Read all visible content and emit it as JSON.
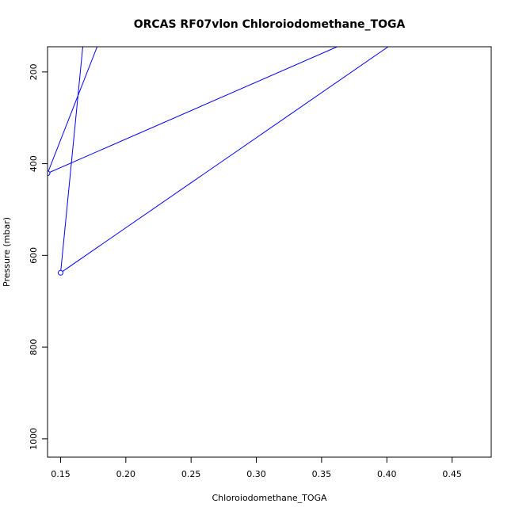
{
  "chart_data": {
    "type": "line",
    "title": "ORCAS RF07vlon Chloroiodomethane_TOGA",
    "xlabel": "Chloroiodomethane_TOGA",
    "ylabel": "Pressure (mbar)",
    "xlim": [
      0.14,
      0.48
    ],
    "ylim": [
      1040,
      145
    ],
    "y_reversed": true,
    "x_ticks": [
      0.15,
      0.2,
      0.25,
      0.3,
      0.35,
      0.4,
      0.45
    ],
    "x_tick_labels": [
      "0.15",
      "0.20",
      "0.25",
      "0.30",
      "0.35",
      "0.40",
      "0.45"
    ],
    "y_ticks": [
      200,
      400,
      600,
      800,
      1000
    ],
    "y_tick_labels": [
      "200",
      "400",
      "600",
      "800",
      "1000"
    ],
    "grid": false,
    "legend": "none",
    "series": [
      {
        "color": "#0000ff",
        "points": [
          {
            "x": 0.167,
            "y": 145
          },
          {
            "x": 0.15,
            "y": 638
          },
          {
            "x": 0.401,
            "y": 145
          }
        ]
      },
      {
        "color": "#0000ff",
        "points": [
          {
            "x": 0.178,
            "y": 145
          },
          {
            "x": 0.14,
            "y": 421
          },
          {
            "x": 0.362,
            "y": 145
          }
        ]
      }
    ],
    "markers": [
      {
        "x": 0.14,
        "y": 421
      },
      {
        "x": 0.15,
        "y": 638
      }
    ]
  }
}
